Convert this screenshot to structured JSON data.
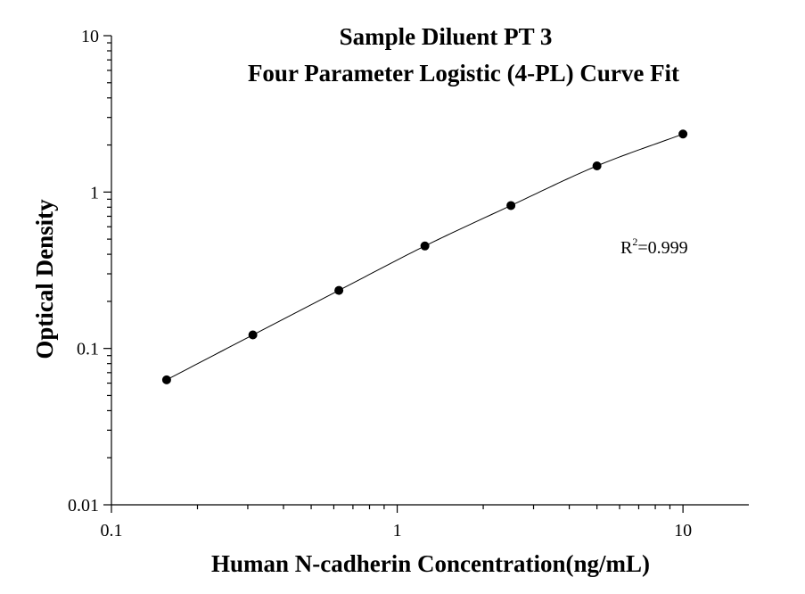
{
  "chart_data": {
    "type": "scatter",
    "title": "Sample Diluent PT 3",
    "subtitle": "Four Parameter Logistic (4-PL) Curve Fit",
    "xlabel": "Human N-cadherin Concentration(ng/mL)",
    "ylabel": "Optical Density",
    "xscale": "log",
    "yscale": "log",
    "xlim": [
      0.1,
      17
    ],
    "ylim": [
      0.01,
      10
    ],
    "x_ticks": [
      {
        "value": 0.1,
        "label": "0.1"
      },
      {
        "value": 1,
        "label": "1"
      },
      {
        "value": 10,
        "label": "10"
      }
    ],
    "y_ticks": [
      {
        "value": 0.01,
        "label": "0.01"
      },
      {
        "value": 0.1,
        "label": "0.1"
      },
      {
        "value": 1,
        "label": "1"
      },
      {
        "value": 10,
        "label": "10"
      }
    ],
    "grid": false,
    "series": [
      {
        "x": [
          0.156,
          0.3125,
          0.625,
          1.25,
          2.5,
          5,
          10
        ],
        "y": [
          0.063,
          0.122,
          0.235,
          0.452,
          0.82,
          1.47,
          2.35
        ]
      }
    ],
    "fit_curve": {
      "type": "4PL",
      "x_range": [
        0.156,
        10
      ]
    },
    "annotation": {
      "label": "R",
      "superscript": "2",
      "value": "=0.999"
    },
    "colors": {
      "marker": "#000000",
      "line": "#000000",
      "background": "#ffffff"
    }
  }
}
